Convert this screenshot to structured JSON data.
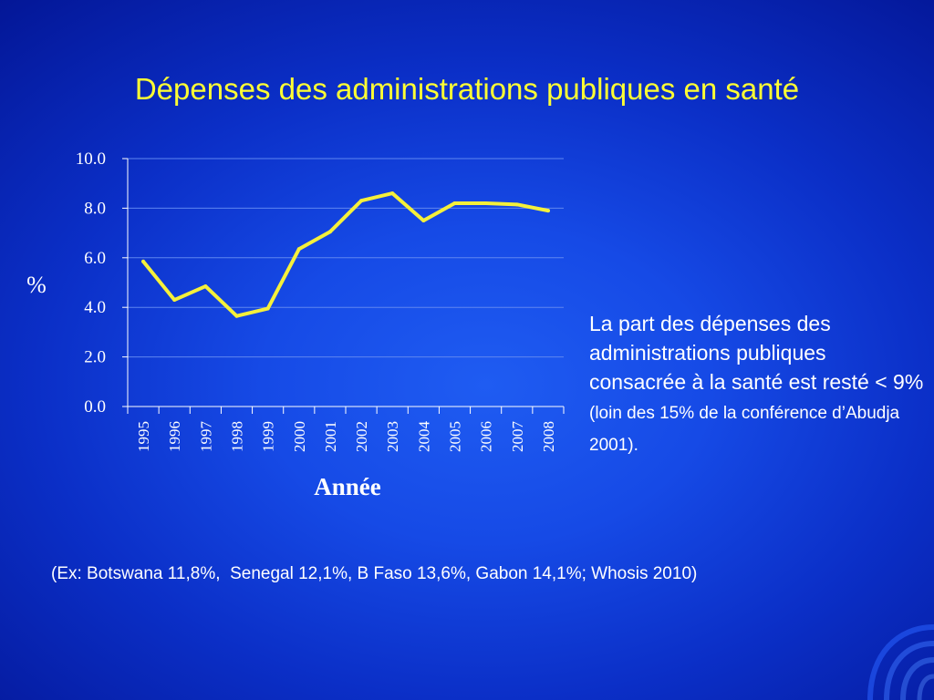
{
  "slide": {
    "title": "Dépenses des administrations publiques en santé",
    "side_text_main": "La part des dépenses des administrations publiques consacrée à la santé est resté < 9%",
    "side_text_small": "(loin des 15% de la conférence d’Abudja 2001).",
    "footnote": "(Ex: Botswana 11,8%,  Senegal 12,1%, B Faso 13,6%, Gabon 14,1%; Whosis 2010)"
  },
  "chart_data": {
    "type": "line",
    "title": "",
    "xlabel": "Année",
    "ylabel": "%",
    "categories": [
      "1995",
      "1996",
      "1997",
      "1998",
      "1999",
      "2000",
      "2001",
      "2002",
      "2003",
      "2004",
      "2005",
      "2006",
      "2007",
      "2008"
    ],
    "y_tick_labels": [
      "0.0",
      "2.0",
      "4.0",
      "6.0",
      "8.0",
      "10.0"
    ],
    "ylim": [
      0,
      10
    ],
    "grid": true,
    "series": [
      {
        "color": "#f5f03a",
        "values": [
          5.85,
          4.3,
          4.85,
          3.65,
          3.95,
          6.35,
          7.05,
          8.3,
          8.6,
          7.5,
          8.2,
          8.2,
          8.15,
          7.9
        ]
      }
    ],
    "colors": {
      "line": "#f5f03a",
      "axis": "#ffffff",
      "gridline": "#5f86f0"
    }
  }
}
